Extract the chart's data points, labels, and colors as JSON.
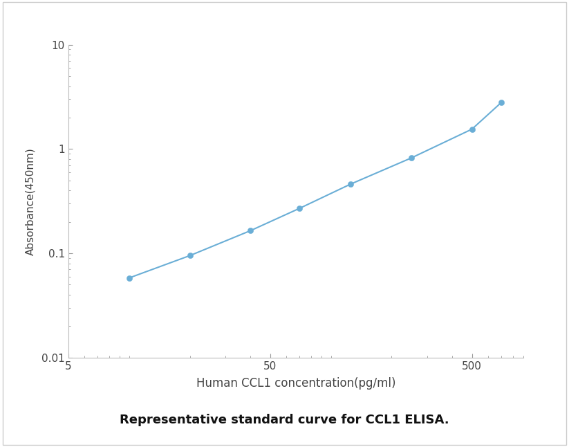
{
  "x": [
    10,
    20,
    40,
    70,
    125,
    250,
    500,
    700
  ],
  "y": [
    0.058,
    0.095,
    0.165,
    0.27,
    0.46,
    0.82,
    1.55,
    2.8
  ],
  "line_color": "#6aaed6",
  "marker_color": "#6aaed6",
  "marker_size": 6,
  "line_width": 1.5,
  "xlabel": "Human CCL1 concentration(pg/ml)",
  "ylabel": "Absorbance(450nm)",
  "title": "Representative standard curve for CCL1 ELISA.",
  "xlim": [
    5,
    900
  ],
  "ylim": [
    0.01,
    10
  ],
  "xticks": [
    5,
    50,
    500
  ],
  "yticks": [
    0.01,
    0.1,
    1,
    10
  ],
  "xlabel_fontsize": 12,
  "ylabel_fontsize": 11,
  "title_fontsize": 13,
  "tick_fontsize": 11,
  "background_color": "#ffffff"
}
